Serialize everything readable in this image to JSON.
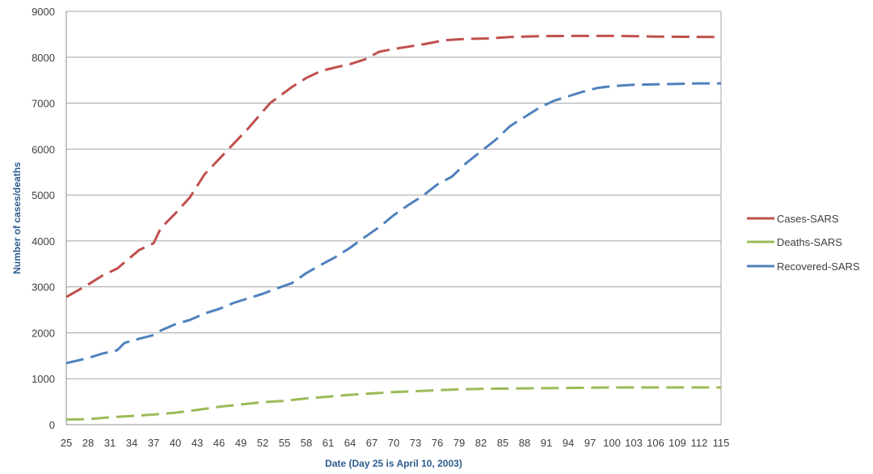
{
  "chart_data": {
    "type": "line",
    "title": "",
    "xlabel": "Date (Day  25  is April 10, 2003)",
    "ylabel": "Number of cases/deaths",
    "xlim": [
      25,
      115
    ],
    "ylim": [
      0,
      9000
    ],
    "y_ticks": [
      0,
      1000,
      2000,
      3000,
      4000,
      5000,
      6000,
      7000,
      8000,
      9000
    ],
    "x_ticks": [
      25,
      28,
      31,
      34,
      37,
      40,
      43,
      46,
      49,
      52,
      55,
      58,
      61,
      64,
      67,
      70,
      73,
      76,
      79,
      82,
      85,
      88,
      91,
      94,
      97,
      100,
      103,
      106,
      109,
      112,
      115
    ],
    "x_tick_labels": [
      "25",
      "28",
      "31",
      "34",
      "37",
      "40",
      "43",
      "46",
      "49",
      "52",
      "55",
      "58",
      "61",
      "64",
      "67",
      "70",
      "73",
      "76",
      "79",
      "82",
      "85",
      "88",
      "91",
      "94",
      "97",
      "100",
      "103",
      "106",
      "109",
      "112",
      "115"
    ],
    "grid": true,
    "legend_position": "right",
    "line_style": "dashed",
    "series": [
      {
        "name": "Cases-SARS",
        "color": "#c0504d",
        "points": [
          [
            25,
            2780
          ],
          [
            28,
            3050
          ],
          [
            30,
            3250
          ],
          [
            32,
            3400
          ],
          [
            35,
            3800
          ],
          [
            37,
            3950
          ],
          [
            38,
            4280
          ],
          [
            40,
            4600
          ],
          [
            42,
            4950
          ],
          [
            44,
            5450
          ],
          [
            47,
            5950
          ],
          [
            50,
            6450
          ],
          [
            53,
            7000
          ],
          [
            56,
            7350
          ],
          [
            58,
            7550
          ],
          [
            60,
            7700
          ],
          [
            62,
            7780
          ],
          [
            64,
            7850
          ],
          [
            66,
            7950
          ],
          [
            68,
            8120
          ],
          [
            70,
            8180
          ],
          [
            72,
            8230
          ],
          [
            74,
            8280
          ],
          [
            77,
            8370
          ],
          [
            80,
            8400
          ],
          [
            83,
            8410
          ],
          [
            86,
            8440
          ],
          [
            90,
            8460
          ],
          [
            95,
            8465
          ],
          [
            100,
            8465
          ],
          [
            103,
            8460
          ],
          [
            106,
            8450
          ],
          [
            110,
            8445
          ],
          [
            115,
            8440
          ]
        ]
      },
      {
        "name": "Deaths-SARS",
        "color": "#9bbb59",
        "points": [
          [
            25,
            110
          ],
          [
            28,
            120
          ],
          [
            31,
            160
          ],
          [
            34,
            190
          ],
          [
            37,
            220
          ],
          [
            40,
            260
          ],
          [
            43,
            320
          ],
          [
            46,
            390
          ],
          [
            49,
            440
          ],
          [
            52,
            490
          ],
          [
            55,
            520
          ],
          [
            58,
            570
          ],
          [
            61,
            610
          ],
          [
            64,
            650
          ],
          [
            67,
            680
          ],
          [
            70,
            710
          ],
          [
            73,
            730
          ],
          [
            76,
            750
          ],
          [
            79,
            770
          ],
          [
            82,
            780
          ],
          [
            85,
            785
          ],
          [
            88,
            790
          ],
          [
            91,
            795
          ],
          [
            94,
            800
          ],
          [
            97,
            805
          ],
          [
            100,
            810
          ],
          [
            103,
            810
          ],
          [
            106,
            810
          ],
          [
            109,
            810
          ],
          [
            112,
            810
          ],
          [
            115,
            810
          ]
        ]
      },
      {
        "name": "Recovered-SARS",
        "color": "#4f81bd",
        "points": [
          [
            25,
            1340
          ],
          [
            28,
            1450
          ],
          [
            30,
            1550
          ],
          [
            32,
            1620
          ],
          [
            33,
            1780
          ],
          [
            35,
            1870
          ],
          [
            37,
            1950
          ],
          [
            38,
            2050
          ],
          [
            40,
            2190
          ],
          [
            42,
            2280
          ],
          [
            44,
            2420
          ],
          [
            46,
            2520
          ],
          [
            48,
            2650
          ],
          [
            50,
            2750
          ],
          [
            52,
            2850
          ],
          [
            54,
            2970
          ],
          [
            56,
            3080
          ],
          [
            58,
            3300
          ],
          [
            60,
            3480
          ],
          [
            62,
            3650
          ],
          [
            64,
            3850
          ],
          [
            66,
            4080
          ],
          [
            68,
            4300
          ],
          [
            70,
            4560
          ],
          [
            72,
            4780
          ],
          [
            74,
            4980
          ],
          [
            76,
            5230
          ],
          [
            78,
            5400
          ],
          [
            80,
            5700
          ],
          [
            82,
            5950
          ],
          [
            84,
            6200
          ],
          [
            86,
            6500
          ],
          [
            88,
            6700
          ],
          [
            90,
            6900
          ],
          [
            92,
            7050
          ],
          [
            94,
            7150
          ],
          [
            96,
            7250
          ],
          [
            98,
            7330
          ],
          [
            100,
            7370
          ],
          [
            103,
            7400
          ],
          [
            106,
            7410
          ],
          [
            109,
            7420
          ],
          [
            112,
            7430
          ],
          [
            115,
            7430
          ]
        ]
      }
    ]
  }
}
